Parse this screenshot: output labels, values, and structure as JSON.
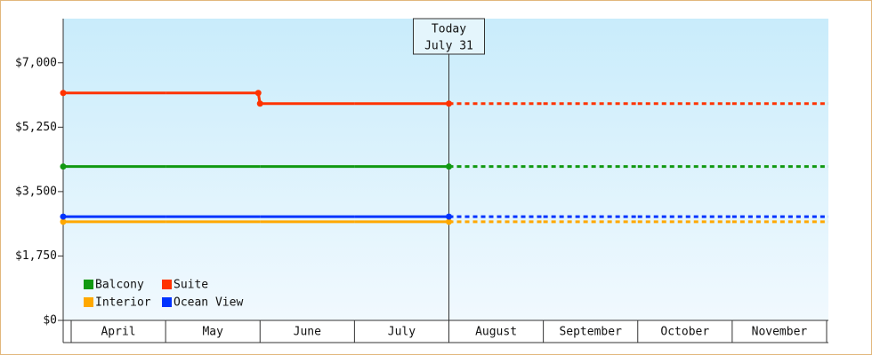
{
  "chart_data": {
    "type": "line",
    "today_label": "Today",
    "today_date": "July 31",
    "categories": [
      "April",
      "May",
      "June",
      "July",
      "August",
      "September",
      "October",
      "November"
    ],
    "series": [
      {
        "name": "Balcony",
        "color": "#119911",
        "values": [
          4180,
          4180,
          4180,
          4180,
          4180,
          4180,
          4180,
          4180
        ]
      },
      {
        "name": "Suite",
        "color": "#ff3300",
        "values": [
          6180,
          6180,
          5890,
          5890,
          5890,
          5890,
          5890,
          5890
        ]
      },
      {
        "name": "Interior",
        "color": "#ffa800",
        "values": [
          2680,
          2680,
          2680,
          2680,
          2680,
          2680,
          2680,
          2680
        ]
      },
      {
        "name": "Ocean View",
        "color": "#0033ff",
        "values": [
          2820,
          2820,
          2820,
          2820,
          2820,
          2820,
          2820,
          2820
        ]
      }
    ],
    "ylim": [
      0,
      8200
    ],
    "yticks": [
      {
        "value": 0,
        "label": "$0"
      },
      {
        "value": 1750,
        "label": "$1,750"
      },
      {
        "value": 3500,
        "label": "$3,500"
      },
      {
        "value": 5250,
        "label": "$5,250"
      },
      {
        "value": 7000,
        "label": "$7,000"
      }
    ]
  }
}
